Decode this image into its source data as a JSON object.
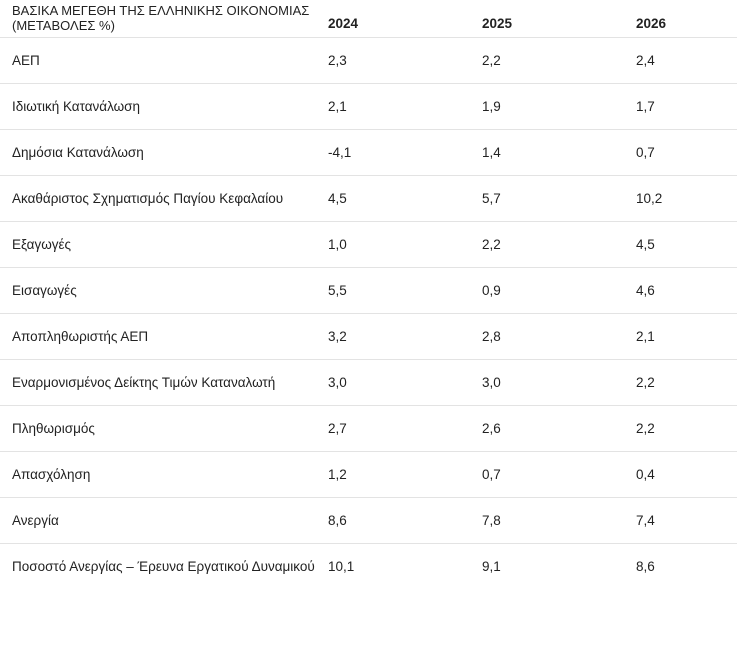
{
  "table": {
    "title": "ΒΑΣΙΚΑ ΜΕΓΕΘΗ ΤΗΣ ΕΛΛΗΝΙΚΗΣ ΟΙΚΟΝΟΜΙΑΣ (ΜΕΤΑΒΟΛΕΣ %)",
    "columns": [
      "2024",
      "2025",
      "2026"
    ],
    "rows": [
      [
        "ΑΕΠ",
        "2,3",
        "2,2",
        "2,4"
      ],
      [
        "Ιδιωτική Κατανάλωση",
        "2,1",
        "1,9",
        "1,7"
      ],
      [
        "Δημόσια Κατανάλωση",
        "-4,1",
        "1,4",
        "0,7"
      ],
      [
        "Ακαθάριστος Σχηματισμός Παγίου Κεφαλαίου",
        "4,5",
        "5,7",
        "10,2"
      ],
      [
        "Εξαγωγές",
        "1,0",
        "2,2",
        "4,5"
      ],
      [
        "Εισαγωγές",
        "5,5",
        "0,9",
        "4,6"
      ],
      [
        "Αποπληθωριστής ΑΕΠ",
        "3,2",
        "2,8",
        "2,1"
      ],
      [
        "Εναρμονισμένος Δείκτης Τιμών Καταναλωτή",
        "3,0",
        "3,0",
        "2,2"
      ],
      [
        "Πληθωρισμός",
        "2,7",
        "2,6",
        "2,2"
      ],
      [
        "Απασχόληση",
        "1,2",
        "0,7",
        "0,4"
      ],
      [
        "Ανεργία",
        "8,6",
        "7,8",
        "7,4"
      ],
      [
        "Ποσοστό Ανεργίας – Έρευνα Εργατικού Δυναμικού",
        "10,1",
        "9,1",
        "8,6"
      ]
    ]
  }
}
